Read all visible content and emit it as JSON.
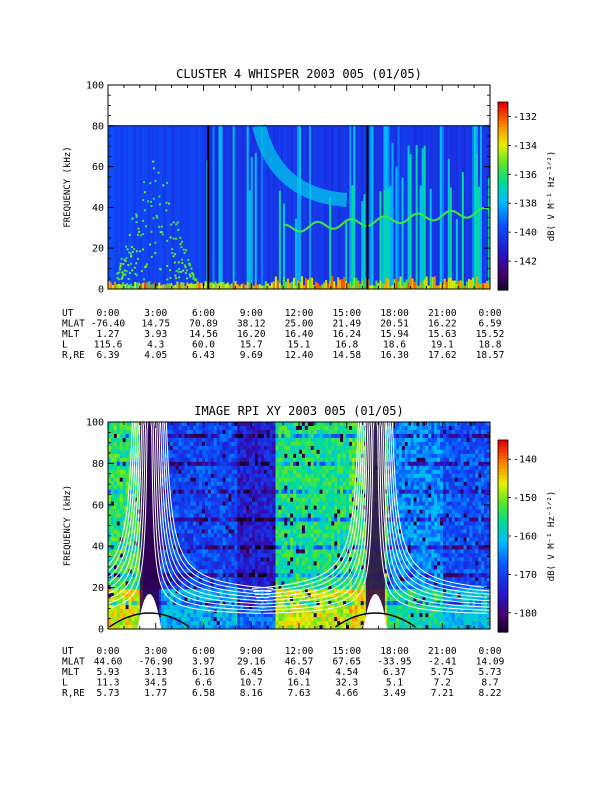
{
  "chart_data": [
    {
      "type": "heatmap",
      "title": "CLUSTER 4 WHISPER 2003 005 (01/05)",
      "ylabel": "FREQUENCY (kHz)",
      "yticks": [
        "0",
        "20",
        "40",
        "60",
        "80",
        "100"
      ],
      "ylim": [
        0,
        100
      ],
      "data_upper_khz": 80,
      "x_hours": [
        0,
        24
      ],
      "colorbar": {
        "label": "dB( V M⁻¹ Hz⁻¹ᐟ²)",
        "ticks": [
          "-132",
          "-134",
          "-136",
          "-138",
          "-140",
          "-142"
        ],
        "range": [
          -144,
          -131
        ]
      },
      "annotations": {
        "vertical_lines_hours": [
          6.3,
          16.3
        ]
      },
      "ephemeris": {
        "rows": [
          {
            "label": "UT",
            "values": [
              "0:00",
              "3:00",
              "6:00",
              "9:00",
              "12:00",
              "15:00",
              "18:00",
              "21:00",
              "0:00"
            ]
          },
          {
            "label": "MLAT",
            "values": [
              "-76.40",
              "14.75",
              "70.89",
              "38.12",
              "25.00",
              "21.49",
              "20.51",
              "16.22",
              "6.59"
            ]
          },
          {
            "label": "MLT",
            "values": [
              "1.27",
              "3.93",
              "14.56",
              "16.20",
              "16.40",
              "16.24",
              "15.94",
              "15.63",
              "15.52"
            ]
          },
          {
            "label": "L",
            "values": [
              "115.6",
              "4.3",
              "60.0",
              "15.7",
              "15.1",
              "16.8",
              "18.6",
              "19.1",
              "18.8"
            ]
          },
          {
            "label": "R,RE",
            "values": [
              "6.39",
              "4.05",
              "6.43",
              "9.69",
              "12.40",
              "14.58",
              "16.30",
              "17.62",
              "18.57"
            ]
          }
        ]
      }
    },
    {
      "type": "heatmap",
      "title": "IMAGE RPI XY 2003 005 (01/05)",
      "ylabel": "FREQUENCY (kHz)",
      "yticks": [
        "0",
        "20",
        "40",
        "60",
        "80",
        "100"
      ],
      "ylim": [
        0,
        100
      ],
      "data_upper_khz": 100,
      "x_hours": [
        0,
        24
      ],
      "colorbar": {
        "label": "dB( V M⁻¹ Hz⁻¹ᐟ²)",
        "ticks": [
          "-140",
          "-150",
          "-160",
          "-170",
          "-180"
        ],
        "range": [
          -185,
          -135
        ]
      },
      "annotations": {
        "white_curve_passes_hours": [
          2.6,
          16.8
        ]
      },
      "ephemeris": {
        "rows": [
          {
            "label": "UT",
            "values": [
              "0:00",
              "3:00",
              "6:00",
              "9:00",
              "12:00",
              "15:00",
              "18:00",
              "21:00",
              "0:00"
            ]
          },
          {
            "label": "MLAT",
            "values": [
              "44.60",
              "-76.90",
              "3.97",
              "29.16",
              "46.57",
              "67.65",
              "-33.95",
              "-2.41",
              "14.09"
            ]
          },
          {
            "label": "MLT",
            "values": [
              "5.93",
              "3.13",
              "6.16",
              "6.45",
              "6.04",
              "4.54",
              "6.37",
              "5.75",
              "5.73"
            ]
          },
          {
            "label": "L",
            "values": [
              "11.3",
              "34.5",
              "6.6",
              "10.7",
              "16.1",
              "32.3",
              "5.1",
              "7.2",
              "8.7"
            ]
          },
          {
            "label": "R,RE",
            "values": [
              "5.73",
              "1.77",
              "6.58",
              "8.16",
              "7.63",
              "4.66",
              "3.49",
              "7.21",
              "8.22"
            ]
          }
        ]
      }
    }
  ]
}
